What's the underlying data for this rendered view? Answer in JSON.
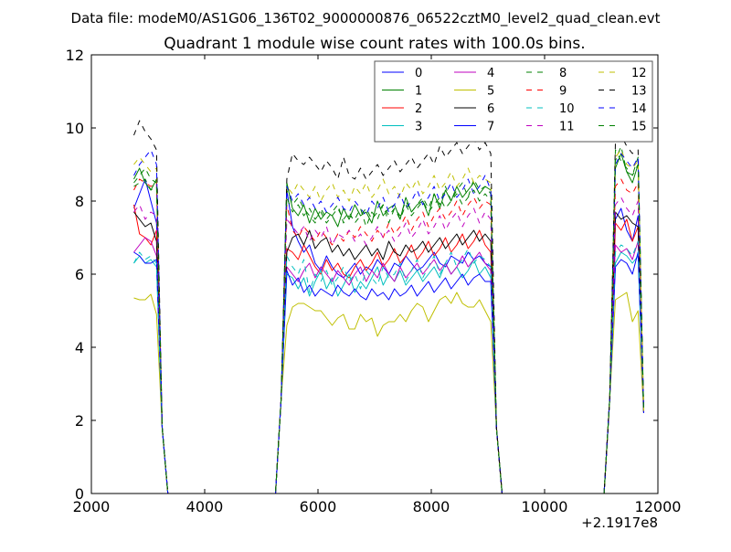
{
  "header": {
    "suptitle": "Data file: modeM0/AS1G06_136T02_9000000876_06522cztM0_level2_quad_clean.evt"
  },
  "chart_data": {
    "type": "line",
    "title": "Quadrant 1 module wise count rates with 100.0s bins.",
    "xlabel": "",
    "ylabel": "",
    "x_offset_label": "+2.1917e8",
    "xlim": [
      2000,
      12000
    ],
    "ylim": [
      0,
      12
    ],
    "xticks": [
      2000,
      4000,
      6000,
      8000,
      10000,
      12000
    ],
    "yticks": [
      0,
      2,
      4,
      6,
      8,
      10,
      12
    ],
    "grid": false,
    "legend_position": "top-right",
    "segments": [
      {
        "start": 2750,
        "n": 5
      },
      {
        "start": 5450,
        "n": 37
      },
      {
        "start": 11250,
        "n": 5
      }
    ],
    "series": [
      {
        "name": "0",
        "color": "#0000ff",
        "style": "solid",
        "seg": [
          [
            7.8,
            8.2,
            8.6,
            8.0,
            7.4
          ],
          [
            8.3,
            7.3,
            6.9,
            6.6,
            6.8,
            6.3,
            6.1,
            6.5,
            6.2,
            6.0,
            5.9,
            6.1,
            6.3,
            6.0,
            6.2,
            6.1,
            6.4,
            6.2,
            6.0,
            6.3,
            6.2,
            6.5,
            6.3,
            6.1,
            6.2,
            6.4,
            6.6,
            6.3,
            6.2,
            6.5,
            6.4,
            6.3,
            6.6,
            6.4,
            6.5,
            6.3,
            6.2
          ],
          [
            7.5,
            7.8,
            7.2,
            6.9,
            7.6
          ]
        ]
      },
      {
        "name": "1",
        "color": "#008000",
        "style": "solid",
        "seg": [
          [
            8.6,
            8.9,
            8.5,
            8.3,
            8.6
          ],
          [
            8.5,
            7.8,
            7.6,
            7.9,
            7.4,
            7.8,
            7.5,
            7.7,
            7.6,
            7.3,
            7.8,
            7.5,
            7.9,
            7.6,
            7.7,
            7.4,
            8.0,
            7.6,
            7.8,
            7.9,
            7.5,
            8.1,
            7.7,
            7.9,
            8.0,
            7.6,
            8.2,
            7.8,
            8.3,
            8.0,
            8.4,
            8.1,
            8.3,
            8.5,
            8.2,
            8.4,
            8.3
          ],
          [
            8.9,
            9.3,
            8.8,
            8.5,
            9.0
          ]
        ]
      },
      {
        "name": "2",
        "color": "#ff0000",
        "style": "solid",
        "seg": [
          [
            7.9,
            7.1,
            7.0,
            6.8,
            7.2
          ],
          [
            6.7,
            6.6,
            6.4,
            6.8,
            6.5,
            6.2,
            6.0,
            6.4,
            6.1,
            6.3,
            6.0,
            5.9,
            6.2,
            6.4,
            6.1,
            6.3,
            6.6,
            6.2,
            6.4,
            6.7,
            6.3,
            6.5,
            6.8,
            6.4,
            6.6,
            6.9,
            6.5,
            6.7,
            7.0,
            6.6,
            6.8,
            7.1,
            6.7,
            6.9,
            7.2,
            6.8,
            6.6
          ],
          [
            7.4,
            7.2,
            7.5,
            6.9,
            7.3
          ]
        ]
      },
      {
        "name": "3",
        "color": "#00bfbf",
        "style": "solid",
        "seg": [
          [
            6.3,
            6.5,
            6.3,
            6.4,
            6.2
          ],
          [
            6.0,
            5.9,
            5.6,
            5.9,
            5.4,
            5.8,
            6.1,
            5.6,
            5.9,
            5.4,
            5.7,
            6.0,
            5.5,
            5.8,
            5.6,
            5.9,
            6.2,
            5.7,
            6.0,
            5.8,
            6.1,
            5.7,
            5.9,
            6.1,
            5.8,
            6.0,
            6.2,
            5.9,
            6.3,
            6.0,
            6.2,
            5.9,
            6.1,
            6.4,
            6.0,
            6.2,
            5.9
          ],
          [
            6.3,
            6.6,
            6.5,
            6.3,
            6.5
          ]
        ]
      },
      {
        "name": "4",
        "color": "#bf00bf",
        "style": "solid",
        "seg": [
          [
            6.6,
            6.8,
            7.0,
            6.9,
            6.5
          ],
          [
            6.2,
            6.0,
            5.8,
            6.1,
            6.3,
            5.9,
            6.2,
            6.0,
            5.8,
            6.1,
            5.9,
            5.7,
            6.0,
            6.2,
            5.8,
            6.1,
            5.9,
            6.3,
            6.0,
            5.8,
            6.2,
            5.9,
            6.1,
            6.3,
            6.0,
            6.2,
            6.4,
            6.1,
            6.3,
            6.0,
            6.2,
            6.5,
            6.2,
            6.4,
            6.6,
            6.3,
            6.1
          ],
          [
            6.8,
            6.6,
            6.7,
            6.4,
            6.9
          ]
        ]
      },
      {
        "name": "5",
        "color": "#bfbf00",
        "style": "solid",
        "seg": [
          [
            5.35,
            5.3,
            5.3,
            5.45,
            4.9
          ],
          [
            4.6,
            5.1,
            5.2,
            5.2,
            5.1,
            5.0,
            5.0,
            4.8,
            4.6,
            4.8,
            4.9,
            4.5,
            4.5,
            4.9,
            4.7,
            4.8,
            4.3,
            4.6,
            4.7,
            4.7,
            4.9,
            4.7,
            5.0,
            5.2,
            5.1,
            4.7,
            5.0,
            5.3,
            5.4,
            5.2,
            5.5,
            5.2,
            5.1,
            5.1,
            5.3,
            5.0,
            4.7
          ],
          [
            5.3,
            5.4,
            5.5,
            4.7,
            5.0
          ]
        ]
      },
      {
        "name": "6",
        "color": "#000000",
        "style": "solid",
        "seg": [
          [
            7.7,
            7.5,
            7.3,
            7.4,
            6.9
          ],
          [
            6.6,
            7.0,
            7.1,
            6.8,
            7.2,
            6.7,
            6.9,
            7.0,
            6.6,
            6.8,
            6.5,
            6.7,
            6.4,
            6.6,
            6.8,
            6.5,
            6.7,
            6.4,
            6.9,
            6.6,
            6.5,
            6.8,
            6.6,
            6.7,
            6.9,
            6.6,
            6.8,
            7.0,
            6.7,
            6.9,
            7.1,
            6.8,
            7.0,
            7.2,
            6.9,
            7.1,
            6.9
          ],
          [
            7.7,
            7.5,
            7.6,
            7.4,
            7.3
          ]
        ]
      },
      {
        "name": "7",
        "color": "#0000ff",
        "style": "solid",
        "seg": [
          [
            6.6,
            6.5,
            6.3,
            6.3,
            6.4
          ],
          [
            6.1,
            5.7,
            5.9,
            5.5,
            5.7,
            5.4,
            5.6,
            5.5,
            5.4,
            5.7,
            5.5,
            5.4,
            5.6,
            5.4,
            5.3,
            5.6,
            5.4,
            5.5,
            5.3,
            5.6,
            5.4,
            5.5,
            5.7,
            5.4,
            5.6,
            5.8,
            5.5,
            5.7,
            5.9,
            5.6,
            5.8,
            6.0,
            5.7,
            5.9,
            6.0,
            5.8,
            5.8
          ],
          [
            6.2,
            6.4,
            6.3,
            6.0,
            6.6
          ]
        ]
      },
      {
        "name": "8",
        "color": "#008000",
        "style": "dashed",
        "seg": [
          [
            8.5,
            8.7,
            8.9,
            8.6,
            8.5
          ],
          [
            8.3,
            7.9,
            8.1,
            7.8,
            7.6,
            7.4,
            7.8,
            7.5,
            7.7,
            7.9,
            7.4,
            7.6,
            7.5,
            7.8,
            7.3,
            7.7,
            7.5,
            7.9,
            7.4,
            7.8,
            7.6,
            8.0,
            7.7,
            7.9,
            8.1,
            7.8,
            8.2,
            7.9,
            8.4,
            8.0,
            8.3,
            8.5,
            8.1,
            8.6,
            8.3,
            8.4,
            8.2
          ],
          [
            9.1,
            9.5,
            8.8,
            8.7,
            9.2
          ]
        ]
      },
      {
        "name": "9",
        "color": "#ff0000",
        "style": "dashed",
        "seg": [
          [
            8.3,
            8.6,
            8.5,
            8.4,
            8.5
          ],
          [
            7.9,
            7.2,
            7.0,
            7.3,
            7.1,
            6.9,
            7.2,
            7.0,
            6.8,
            7.1,
            6.9,
            7.2,
            7.0,
            7.3,
            7.1,
            6.9,
            7.2,
            7.0,
            7.4,
            7.1,
            7.3,
            7.6,
            7.2,
            7.5,
            7.7,
            7.3,
            7.6,
            7.8,
            7.5,
            7.7,
            8.0,
            7.6,
            7.9,
            8.1,
            7.8,
            8.0,
            7.9
          ],
          [
            8.4,
            8.6,
            8.3,
            8.2,
            8.5
          ]
        ]
      },
      {
        "name": "10",
        "color": "#00bfbf",
        "style": "dashed",
        "seg": [
          [
            6.3,
            6.6,
            6.4,
            6.5,
            6.3
          ],
          [
            6.5,
            6.2,
            6.0,
            6.4,
            5.5,
            6.0,
            5.8,
            6.1,
            5.7,
            5.9,
            6.2,
            5.8,
            6.0,
            5.6,
            6.1,
            5.9,
            5.7,
            6.2,
            5.9,
            6.0,
            6.3,
            5.8,
            6.1,
            6.4,
            5.9,
            6.2,
            6.5,
            6.0,
            6.3,
            6.6,
            6.2,
            6.4,
            6.7,
            6.3,
            6.5,
            6.4,
            6.2
          ],
          [
            6.6,
            6.8,
            6.7,
            6.5,
            6.9
          ]
        ]
      },
      {
        "name": "11",
        "color": "#bf00bf",
        "style": "dashed",
        "seg": [
          [
            7.7,
            7.9,
            7.5,
            7.7,
            7.6
          ],
          [
            7.5,
            7.3,
            7.1,
            7.3,
            6.9,
            7.2,
            7.0,
            7.3,
            6.8,
            7.1,
            7.0,
            7.2,
            6.9,
            7.1,
            6.8,
            7.0,
            7.3,
            7.0,
            7.2,
            6.9,
            7.1,
            7.4,
            7.0,
            7.2,
            7.5,
            7.1,
            7.3,
            7.6,
            7.2,
            7.5,
            7.7,
            7.3,
            7.6,
            7.8,
            7.4,
            7.7,
            7.5
          ],
          [
            7.9,
            8.1,
            7.8,
            7.6,
            8.0
          ]
        ]
      },
      {
        "name": "12",
        "color": "#bfbf00",
        "style": "dashed",
        "seg": [
          [
            9.0,
            9.2,
            9.0,
            8.8,
            8.9
          ],
          [
            8.4,
            8.2,
            8.5,
            8.3,
            8.1,
            8.4,
            8.0,
            8.3,
            8.5,
            8.1,
            8.3,
            8.0,
            8.4,
            8.2,
            8.5,
            8.1,
            8.3,
            8.6,
            8.2,
            8.4,
            8.1,
            8.5,
            8.3,
            8.6,
            8.2,
            8.4,
            8.7,
            8.3,
            8.5,
            8.8,
            8.4,
            8.6,
            8.9,
            8.5,
            8.7,
            8.6,
            8.5
          ],
          [
            9.2,
            9.4,
            9.0,
            8.9,
            9.1
          ]
        ]
      },
      {
        "name": "13",
        "color": "#000000",
        "style": "dashed",
        "seg": [
          [
            9.8,
            10.2,
            9.9,
            9.7,
            9.4
          ],
          [
            8.6,
            9.3,
            9.1,
            9.0,
            9.2,
            9.0,
            8.8,
            9.1,
            8.9,
            8.6,
            9.2,
            8.7,
            8.6,
            8.9,
            8.6,
            8.8,
            9.0,
            8.7,
            8.9,
            9.1,
            8.8,
            9.0,
            9.2,
            8.9,
            9.1,
            9.3,
            9.0,
            9.5,
            9.2,
            9.4,
            9.6,
            9.3,
            9.5,
            9.7,
            9.4,
            9.6,
            9.3
          ],
          [
            9.6,
            9.8,
            9.5,
            9.3,
            9.4
          ]
        ]
      },
      {
        "name": "14",
        "color": "#0000ff",
        "style": "dashed",
        "seg": [
          [
            8.7,
            9.0,
            9.2,
            9.4,
            9.0
          ],
          [
            8.4,
            8.0,
            8.2,
            7.9,
            8.1,
            7.8,
            8.0,
            7.7,
            7.9,
            8.1,
            7.8,
            7.7,
            8.0,
            7.8,
            7.6,
            8.0,
            7.8,
            8.1,
            7.7,
            7.9,
            8.2,
            7.8,
            8.0,
            8.3,
            7.9,
            8.1,
            8.4,
            8.0,
            8.2,
            8.5,
            8.1,
            8.3,
            8.6,
            8.2,
            8.4,
            8.7,
            8.3
          ],
          [
            9.0,
            9.3,
            9.1,
            8.9,
            9.2
          ]
        ]
      },
      {
        "name": "15",
        "color": "#008000",
        "style": "dashed",
        "seg": [
          [
            8.4,
            8.5,
            8.6,
            8.3,
            8.4
          ],
          [
            8.1,
            7.7,
            7.9,
            7.6,
            7.8,
            7.5,
            7.7,
            7.4,
            7.6,
            7.8,
            7.5,
            7.7,
            7.4,
            7.6,
            7.8,
            7.5,
            7.7,
            7.9,
            7.6,
            7.8,
            7.5,
            7.9,
            7.6,
            7.8,
            8.0,
            7.7,
            7.9,
            8.1,
            7.8,
            8.0,
            8.2,
            7.9,
            8.1,
            8.3,
            8.0,
            8.2,
            8.0
          ],
          [
            9.4,
            9.1,
            8.9,
            8.7,
            9.0
          ]
        ]
      }
    ]
  }
}
